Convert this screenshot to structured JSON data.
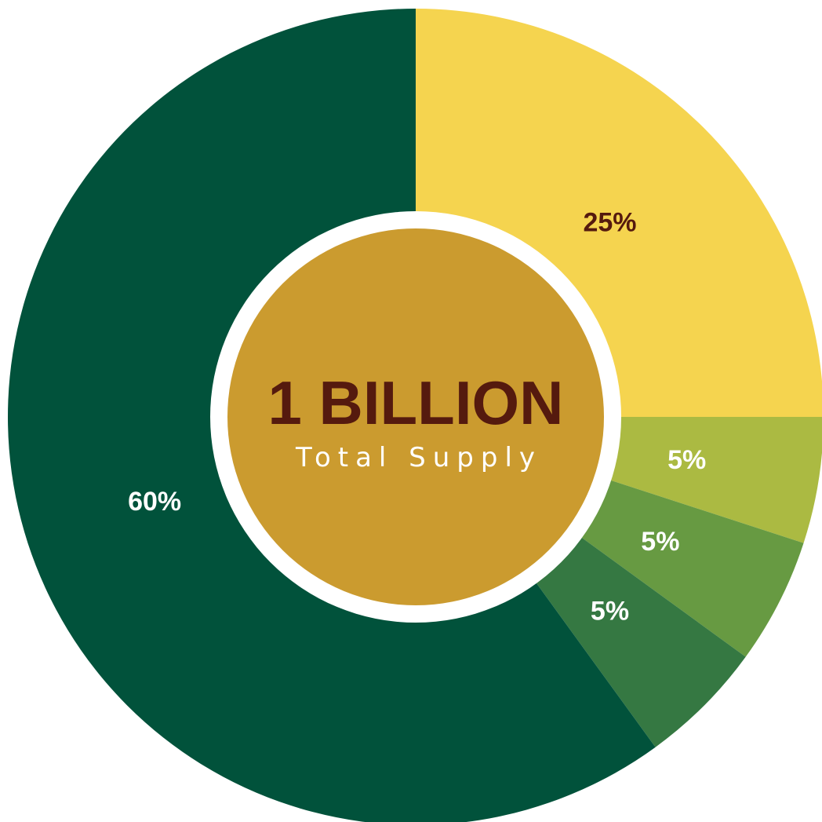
{
  "chart_data": {
    "type": "pie",
    "variant": "donut",
    "categories": [
      "",
      "",
      "",
      "",
      ""
    ],
    "values": [
      25,
      5,
      5,
      5,
      60
    ],
    "labels": [
      "25%",
      "5%",
      "5%",
      "5%",
      "60%"
    ],
    "colors": [
      "#F5D44F",
      "#ABBA42",
      "#679A42",
      "#357842",
      "#01523B"
    ],
    "label_colors": [
      "#551A0E",
      "#FFFFFF",
      "#FFFFFF",
      "#FFFFFF",
      "#FFFFFF"
    ],
    "start_angle": "12 o'clock",
    "direction": "clockwise",
    "legend": "none"
  },
  "center": {
    "title": "1 BILLION",
    "subtitle": "Total Supply",
    "fill_color": "#CB9B2F",
    "ring_color": "#FFFFFF",
    "text_color": "#551A0E",
    "subtitle_color": "#FFFFFF"
  }
}
